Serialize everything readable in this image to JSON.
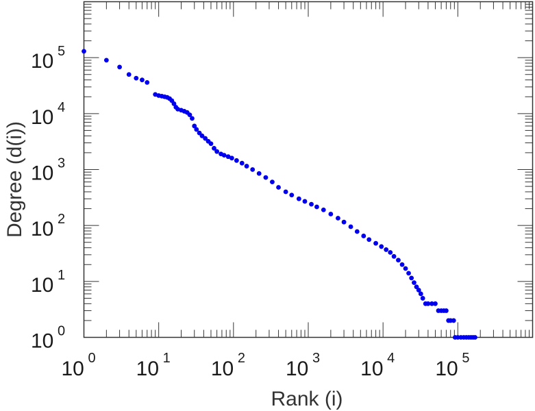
{
  "chart_data": {
    "type": "scatter",
    "title": "",
    "xlabel": "Rank (i)",
    "ylabel": "Degree (d(i))",
    "x_scale": "log",
    "y_scale": "log",
    "xlim": [
      1,
      1000000
    ],
    "ylim": [
      1,
      1000000
    ],
    "x_ticks": [
      {
        "base": "10",
        "exp": "0",
        "value": 1
      },
      {
        "base": "10",
        "exp": "1",
        "value": 10
      },
      {
        "base": "10",
        "exp": "2",
        "value": 100
      },
      {
        "base": "10",
        "exp": "3",
        "value": 1000
      },
      {
        "base": "10",
        "exp": "4",
        "value": 10000
      },
      {
        "base": "10",
        "exp": "5",
        "value": 100000
      }
    ],
    "y_ticks": [
      {
        "base": "10",
        "exp": "0",
        "value": 1
      },
      {
        "base": "10",
        "exp": "1",
        "value": 10
      },
      {
        "base": "10",
        "exp": "2",
        "value": 100
      },
      {
        "base": "10",
        "exp": "3",
        "value": 1000
      },
      {
        "base": "10",
        "exp": "4",
        "value": 10000
      },
      {
        "base": "10",
        "exp": "5",
        "value": 100000
      }
    ],
    "grid": false,
    "marker_color": "#0000ee",
    "points": [
      [
        1,
        130000
      ],
      [
        2,
        90000
      ],
      [
        3,
        68000
      ],
      [
        4,
        50000
      ],
      [
        5,
        43000
      ],
      [
        6,
        40000
      ],
      [
        7,
        36000
      ],
      [
        9,
        22000
      ],
      [
        10,
        21000
      ],
      [
        11,
        20500
      ],
      [
        12,
        20000
      ],
      [
        13,
        19500
      ],
      [
        14,
        18500
      ],
      [
        15,
        17000
      ],
      [
        16,
        15000
      ],
      [
        17,
        13000
      ],
      [
        18,
        12000
      ],
      [
        20,
        11500
      ],
      [
        22,
        11000
      ],
      [
        24,
        10500
      ],
      [
        26,
        9500
      ],
      [
        28,
        8200
      ],
      [
        30,
        6000
      ],
      [
        32,
        5200
      ],
      [
        35,
        4500
      ],
      [
        38,
        4000
      ],
      [
        42,
        3600
      ],
      [
        46,
        3200
      ],
      [
        50,
        2900
      ],
      [
        55,
        2400
      ],
      [
        60,
        2100
      ],
      [
        68,
        1900
      ],
      [
        75,
        1800
      ],
      [
        85,
        1700
      ],
      [
        95,
        1600
      ],
      [
        110,
        1450
      ],
      [
        130,
        1300
      ],
      [
        150,
        1150
      ],
      [
        180,
        1000
      ],
      [
        220,
        850
      ],
      [
        270,
        720
      ],
      [
        330,
        600
      ],
      [
        400,
        480
      ],
      [
        500,
        400
      ],
      [
        600,
        350
      ],
      [
        750,
        300
      ],
      [
        900,
        270
      ],
      [
        1100,
        240
      ],
      [
        1300,
        215
      ],
      [
        1600,
        190
      ],
      [
        2000,
        160
      ],
      [
        2500,
        135
      ],
      [
        3000,
        115
      ],
      [
        3700,
        95
      ],
      [
        4500,
        78
      ],
      [
        5500,
        65
      ],
      [
        6500,
        56
      ],
      [
        8000,
        48
      ],
      [
        9500,
        42
      ],
      [
        11000,
        37
      ],
      [
        12500,
        33
      ],
      [
        14000,
        28
      ],
      [
        16000,
        24
      ],
      [
        18000,
        20
      ],
      [
        20000,
        17
      ],
      [
        22000,
        14
      ],
      [
        24000,
        11.5
      ],
      [
        26000,
        9.5
      ],
      [
        28000,
        8
      ],
      [
        30000,
        7
      ],
      [
        32000,
        6
      ],
      [
        34000,
        5
      ],
      [
        37000,
        4
      ],
      [
        40000,
        4
      ],
      [
        45000,
        4
      ],
      [
        50000,
        4
      ],
      [
        55000,
        3
      ],
      [
        60000,
        3
      ],
      [
        65000,
        3
      ],
      [
        70000,
        3
      ],
      [
        75000,
        2
      ],
      [
        80000,
        2
      ],
      [
        88000,
        2
      ],
      [
        92000,
        1
      ],
      [
        100000,
        1
      ],
      [
        110000,
        1
      ],
      [
        120000,
        1
      ],
      [
        130000,
        1
      ],
      [
        140000,
        1
      ],
      [
        150000,
        1
      ],
      [
        160000,
        1
      ],
      [
        170000,
        1
      ]
    ]
  }
}
